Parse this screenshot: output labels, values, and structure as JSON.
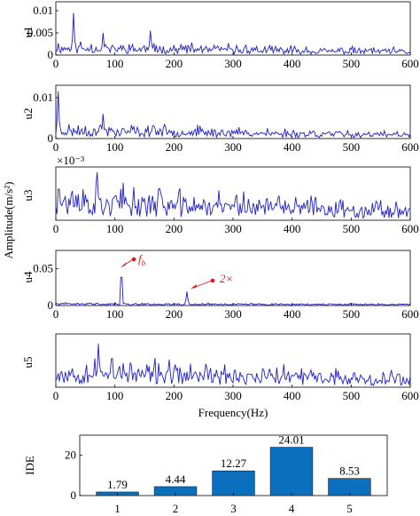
{
  "chart_data": [
    {
      "type": "line",
      "series": [
        {
          "name": "u1"
        }
      ],
      "xlim": [
        0,
        600
      ],
      "xticks": [
        "0",
        "100",
        "200",
        "300",
        "400",
        "500",
        "600"
      ],
      "ylim": [
        0,
        0.012
      ],
      "yticks": [
        "0",
        "0.005",
        "0.01"
      ],
      "ylabel": "u1",
      "peaks": [
        {
          "x": 30,
          "y": 0.0095
        },
        {
          "x": 80,
          "y": 0.005
        },
        {
          "x": 160,
          "y": 0.0055
        }
      ],
      "seed": 11,
      "base": 0.0021,
      "decay": 0.0013,
      "noise": 0.0018
    },
    {
      "type": "line",
      "series": [
        {
          "name": "u2"
        }
      ],
      "xlim": [
        0,
        600
      ],
      "xticks": [
        "0",
        "100",
        "200",
        "300",
        "400",
        "500",
        "600"
      ],
      "ylim": [
        0,
        0.013
      ],
      "yticks": [
        "0",
        "0.01"
      ],
      "ylabel": "u2",
      "peaks": [
        {
          "x": 4,
          "y": 0.0115
        },
        {
          "x": 80,
          "y": 0.006
        },
        {
          "x": 165,
          "y": 0.0045
        }
      ],
      "seed": 23,
      "base": 0.0025,
      "decay": 0.0015,
      "noise": 0.002
    },
    {
      "type": "line",
      "series": [
        {
          "name": "u3"
        }
      ],
      "xlim": [
        0,
        600
      ],
      "xticks": [
        "0",
        "100",
        "200",
        "300",
        "400",
        "500",
        "600"
      ],
      "ylim": [
        0,
        8
      ],
      "yticks": [],
      "exponent": "×10⁻³",
      "ylabel": "u3",
      "peaks": [
        {
          "x": 5,
          "y": 6.8
        },
        {
          "x": 70,
          "y": 7.2
        },
        {
          "x": 175,
          "y": 6.9
        }
      ],
      "seed": 37,
      "base": 3.4,
      "decay": 1.6,
      "noise": 3.0
    },
    {
      "type": "line",
      "series": [
        {
          "name": "u4"
        }
      ],
      "xlim": [
        0,
        600
      ],
      "xticks": [
        "0",
        "100",
        "200",
        "300",
        "400",
        "500",
        "600"
      ],
      "ylim": [
        0,
        0.075
      ],
      "yticks": [
        "0",
        "0.05"
      ],
      "ylabel": "u4",
      "peaks": [
        {
          "x": 111,
          "y": 0.056
        },
        {
          "x": 222,
          "y": 0.019
        }
      ],
      "seed": 41,
      "base": 0.003,
      "decay": 0.001,
      "noise": 0.0015,
      "annotations": [
        "f",
        "b",
        "2×"
      ]
    },
    {
      "type": "line",
      "series": [
        {
          "name": "u5"
        }
      ],
      "xlim": [
        0,
        600
      ],
      "xticks": [
        "0",
        "100",
        "200",
        "300",
        "400",
        "500",
        "600"
      ],
      "ylim": [
        0,
        1
      ],
      "yticks": [],
      "ylabel": "u5",
      "xlabel": "Frequency(Hz)",
      "peaks": [
        {
          "x": 72,
          "y": 0.82
        },
        {
          "x": 95,
          "y": 0.78
        }
      ],
      "seed": 53,
      "base": 0.34,
      "decay": 0.16,
      "noise": 0.33
    },
    {
      "type": "bar",
      "categories": [
        "1",
        "2",
        "3",
        "4",
        "5"
      ],
      "values": [
        1.79,
        4.44,
        12.27,
        24.01,
        8.53
      ],
      "labels": [
        "1.79",
        "4.44",
        "12.27",
        "24.01",
        "8.53"
      ],
      "ylim": [
        0,
        30
      ],
      "yticks": [
        "0",
        "20"
      ],
      "ylabel": "IDE",
      "color": "#0a6fbd"
    }
  ],
  "shared_ylabel": "Amplitude(m/s²)"
}
